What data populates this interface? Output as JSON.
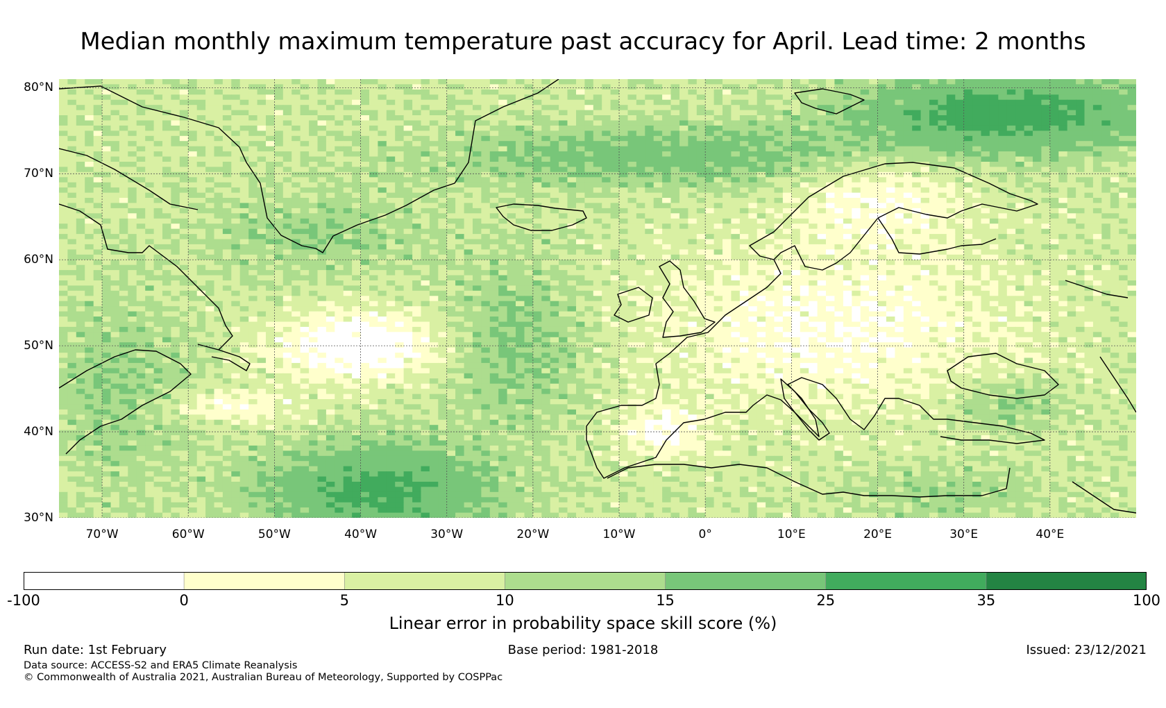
{
  "title": "Median monthly maximum temperature past accuracy for April. Lead time: 2 months",
  "map": {
    "region": "North Atlantic and Europe",
    "lon_range": [
      -75,
      50
    ],
    "lat_range": [
      30,
      81
    ],
    "latitude_labels": [
      "80°N",
      "70°N",
      "60°N",
      "50°N",
      "40°N",
      "30°N"
    ],
    "latitude_values": [
      80,
      70,
      60,
      50,
      40,
      30
    ],
    "longitude_labels": [
      "70°W",
      "60°W",
      "50°W",
      "40°W",
      "30°W",
      "20°W",
      "10°W",
      "0°",
      "10°E",
      "20°E",
      "30°E",
      "40°E"
    ],
    "longitude_values": [
      -70,
      -60,
      -50,
      -40,
      -30,
      -20,
      -10,
      0,
      10,
      20,
      30,
      40
    ],
    "gridlines": "dotted",
    "coastlines": "black"
  },
  "colorbar": {
    "label": "Linear error in probability space skill score (%)",
    "tick_labels": [
      "-100",
      "0",
      "5",
      "10",
      "15",
      "25",
      "35",
      "100"
    ],
    "bins": [
      {
        "from": -100,
        "to": 0,
        "color": "#ffffff"
      },
      {
        "from": 0,
        "to": 5,
        "color": "#ffffcc"
      },
      {
        "from": 5,
        "to": 10,
        "color": "#d9f0a3"
      },
      {
        "from": 10,
        "to": 15,
        "color": "#addd8e"
      },
      {
        "from": 15,
        "to": 25,
        "color": "#78c679"
      },
      {
        "from": 25,
        "to": 35,
        "color": "#41ab5d"
      },
      {
        "from": 35,
        "to": 100,
        "color": "#238443"
      }
    ]
  },
  "footer": {
    "run_date": "Run date: 1st February",
    "base_period": "Base period: 1981-2018",
    "issued": "Issued: 23/12/2021",
    "data_source": "Data source: ACCESS-S2 and ERA5 Climate Reanalysis",
    "copyright": "© Commonwealth of Australia 2021, Australian Bureau of Meteorology, Supported by COSPPac"
  }
}
